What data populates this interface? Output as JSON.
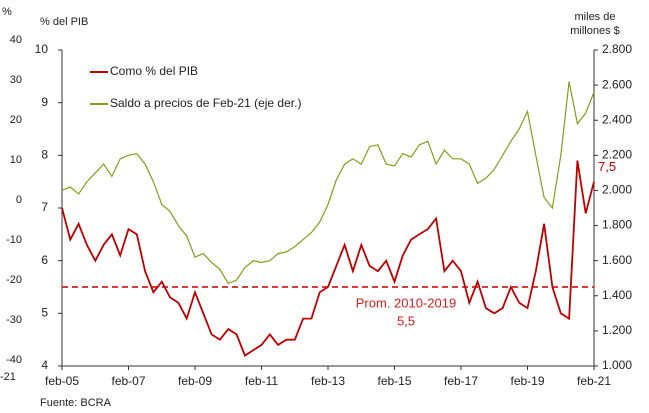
{
  "chart_data": {
    "type": "line",
    "ylabel": "% del PIB",
    "y2label": [
      "miles de",
      "millones $"
    ],
    "categories": [
      "feb-05",
      "may-05",
      "ago-05",
      "nov-05",
      "feb-06",
      "may-06",
      "ago-06",
      "nov-06",
      "feb-07",
      "may-07",
      "ago-07",
      "nov-07",
      "feb-08",
      "may-08",
      "ago-08",
      "nov-08",
      "feb-09",
      "may-09",
      "ago-09",
      "nov-09",
      "feb-10",
      "may-10",
      "ago-10",
      "nov-10",
      "feb-11",
      "may-11",
      "ago-11",
      "nov-11",
      "feb-12",
      "may-12",
      "ago-12",
      "nov-12",
      "feb-13",
      "may-13",
      "ago-13",
      "nov-13",
      "feb-14",
      "may-14",
      "ago-14",
      "nov-14",
      "feb-15",
      "may-15",
      "ago-15",
      "nov-15",
      "feb-16",
      "may-16",
      "ago-16",
      "nov-16",
      "feb-17",
      "may-17",
      "ago-17",
      "nov-17",
      "feb-18",
      "may-18",
      "ago-18",
      "nov-18",
      "feb-19",
      "may-19",
      "ago-19",
      "nov-19",
      "feb-20",
      "may-20",
      "ago-20",
      "nov-20",
      "feb-21"
    ],
    "xticks": [
      "feb-05",
      "feb-07",
      "feb-09",
      "feb-11",
      "feb-13",
      "feb-15",
      "feb-17",
      "feb-19",
      "feb-21"
    ],
    "series": [
      {
        "name": "Como % del PIB",
        "color": "#c00000",
        "values": [
          7.0,
          6.4,
          6.7,
          6.3,
          6.0,
          6.3,
          6.5,
          6.1,
          6.6,
          6.5,
          5.8,
          5.4,
          5.6,
          5.3,
          5.2,
          4.9,
          5.4,
          5.0,
          4.6,
          4.5,
          4.7,
          4.6,
          4.2,
          4.3,
          4.4,
          4.6,
          4.4,
          4.5,
          4.5,
          4.9,
          4.9,
          5.4,
          5.5,
          5.9,
          6.3,
          5.8,
          6.3,
          5.9,
          5.8,
          6.0,
          5.6,
          6.1,
          6.4,
          6.5,
          6.6,
          6.8,
          5.8,
          6.0,
          5.8,
          5.2,
          5.6,
          5.1,
          5.0,
          5.1,
          5.5,
          5.2,
          5.1,
          5.8,
          6.7,
          5.5,
          5.0,
          4.9,
          7.9,
          6.9,
          7.5
        ],
        "value_labels": {
          "64": "7,5"
        }
      },
      {
        "name": "Saldo a precios de Feb-21 (eje der.)",
        "color": "#8a9a1c",
        "axis": "y2",
        "values": [
          2000,
          2020,
          1980,
          2050,
          2100,
          2150,
          2080,
          2180,
          2200,
          2210,
          2150,
          2050,
          1920,
          1880,
          1800,
          1740,
          1620,
          1640,
          1590,
          1550,
          1470,
          1490,
          1560,
          1600,
          1590,
          1600,
          1640,
          1650,
          1680,
          1720,
          1760,
          1820,
          1920,
          2060,
          2150,
          2180,
          2150,
          2250,
          2260,
          2150,
          2140,
          2210,
          2190,
          2260,
          2280,
          2150,
          2230,
          2180,
          2180,
          2150,
          2040,
          2070,
          2120,
          2200,
          2280,
          2350,
          2450,
          2200,
          1960,
          1900,
          2200,
          2620,
          2380,
          2440,
          2560
        ]
      }
    ],
    "reference": {
      "value": 5.5,
      "label": "Prom. 2010-2019",
      "value_label": "5,5",
      "color": "#d42020"
    },
    "ylim": [
      4,
      10
    ],
    "yticks": [
      4,
      5,
      6,
      7,
      8,
      9,
      10
    ],
    "y2lim": [
      1000,
      2800
    ],
    "y2ticks": [
      {
        "value": 1000,
        "label": "1.000"
      },
      {
        "value": 1200,
        "label": "1.200"
      },
      {
        "value": 1400,
        "label": "1.400"
      },
      {
        "value": 1600,
        "label": "1.600"
      },
      {
        "value": 1800,
        "label": "1.800"
      },
      {
        "value": 2000,
        "label": "2.000"
      },
      {
        "value": 2200,
        "label": "2.200"
      },
      {
        "value": 2400,
        "label": "2.400"
      },
      {
        "value": 2600,
        "label": "2.600"
      },
      {
        "value": 2800,
        "label": "2.800"
      }
    ],
    "legend": "upper left",
    "source": "Fuente: BCRA"
  },
  "left_fragment": {
    "unit": "%",
    "ticks": [
      40,
      30,
      20,
      10,
      0,
      -10,
      -20,
      -30,
      -40
    ],
    "label": "-21"
  }
}
